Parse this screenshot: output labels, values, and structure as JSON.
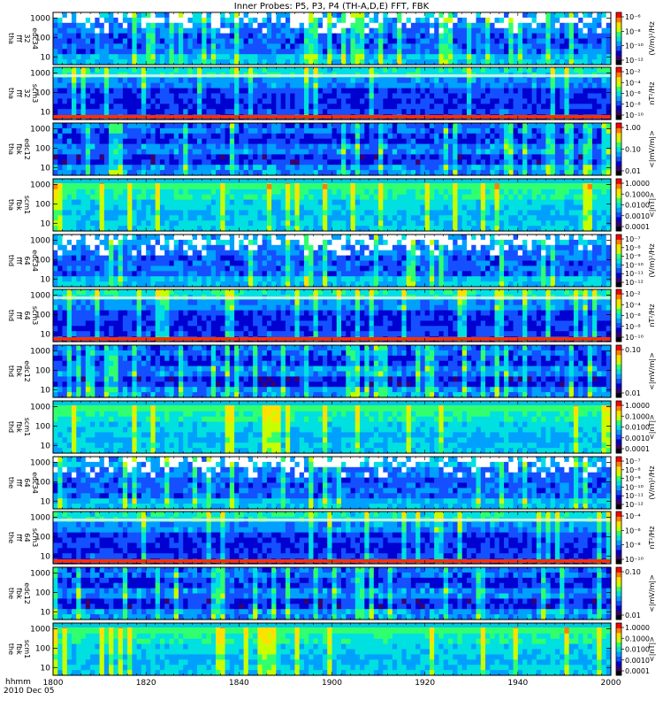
{
  "chart_data": {
    "type": "heatmap",
    "title": "Inner Probes: P5, P3, P4 (TH-A,D,E) FFT, FBK",
    "x": {
      "label": "hhmm",
      "date_label": "2010 Dec 05",
      "ticks": [
        "1800",
        "1820",
        "1840",
        "1900",
        "1920",
        "1940",
        "2000"
      ]
    },
    "panels": [
      {
        "probe": "tha",
        "instrument": "fff",
        "channel": "32",
        "quantity": "edc34",
        "yticks": [
          "10",
          "100",
          "1000"
        ],
        "cbar_unit": "(V/m)²/Hz",
        "cbar_ticks": [
          "10⁻⁶",
          "10⁻⁸",
          "10⁻¹⁰",
          "10⁻¹²"
        ]
      },
      {
        "probe": "tha",
        "instrument": "fff",
        "channel": "32",
        "quantity": "scm3",
        "yticks": [
          "10",
          "100",
          "1000"
        ],
        "cbar_unit": "nT²/Hz",
        "cbar_ticks": [
          "10⁻²",
          "10⁻⁴",
          "10⁻⁶",
          "10⁻⁸",
          "10⁻¹⁰"
        ]
      },
      {
        "probe": "tha",
        "instrument": "fbk",
        "channel": "",
        "quantity": "edc12",
        "yticks": [
          "10",
          "100",
          "1000"
        ],
        "cbar_unit": "<|mV/m|>",
        "cbar_ticks": [
          "1.00",
          "0.10",
          "0.01"
        ]
      },
      {
        "probe": "tha",
        "instrument": "fbk",
        "channel": "",
        "quantity": "scm1",
        "yticks": [
          "10",
          "100",
          "1000"
        ],
        "cbar_unit": "<|nT|>",
        "cbar_ticks": [
          "1.0000",
          "0.1000",
          "0.0100",
          "0.0010",
          "0.0001"
        ]
      },
      {
        "probe": "thd",
        "instrument": "fff",
        "channel": "64",
        "quantity": "edc34",
        "yticks": [
          "10",
          "100",
          "1000"
        ],
        "cbar_unit": "(V/m)²/Hz",
        "cbar_ticks": [
          "10⁻⁷",
          "10⁻⁸",
          "10⁻⁹",
          "10⁻¹⁰",
          "10⁻¹¹",
          "10⁻¹²"
        ]
      },
      {
        "probe": "thd",
        "instrument": "fff",
        "channel": "64",
        "quantity": "scm3",
        "yticks": [
          "10",
          "100",
          "1000"
        ],
        "cbar_unit": "nT²/Hz",
        "cbar_ticks": [
          "10⁻²",
          "10⁻⁴",
          "10⁻⁶",
          "10⁻⁸",
          "10⁻¹⁰"
        ]
      },
      {
        "probe": "thd",
        "instrument": "fbk",
        "channel": "",
        "quantity": "edc12",
        "yticks": [
          "10",
          "100",
          "1000"
        ],
        "cbar_unit": "<|mV/m|>",
        "cbar_ticks": [
          "0.10",
          "0.01"
        ]
      },
      {
        "probe": "thd",
        "instrument": "fbk",
        "channel": "",
        "quantity": "scm1",
        "yticks": [
          "10",
          "100",
          "1000"
        ],
        "cbar_unit": "<|nT|>",
        "cbar_ticks": [
          "1.0000",
          "0.1000",
          "0.0100",
          "0.0010",
          "0.0001"
        ]
      },
      {
        "probe": "the",
        "instrument": "fff",
        "channel": "64",
        "quantity": "edc34",
        "yticks": [
          "10",
          "100",
          "1000"
        ],
        "cbar_unit": "(V/m)²/Hz",
        "cbar_ticks": [
          "10⁻⁷",
          "10⁻⁸",
          "10⁻⁹",
          "10⁻¹⁰",
          "10⁻¹¹",
          "10⁻¹²"
        ]
      },
      {
        "probe": "the",
        "instrument": "fff",
        "channel": "64",
        "quantity": "scm3",
        "yticks": [
          "10",
          "100",
          "1000"
        ],
        "cbar_unit": "nT²/Hz",
        "cbar_ticks": [
          "10⁻⁴",
          "10⁻⁶",
          "10⁻⁸",
          "10⁻¹⁰"
        ]
      },
      {
        "probe": "the",
        "instrument": "fbk",
        "channel": "",
        "quantity": "edc12",
        "yticks": [
          "10",
          "100",
          "1000"
        ],
        "cbar_unit": "<|mV/m|>",
        "cbar_ticks": [
          "0.10",
          "0.01"
        ]
      },
      {
        "probe": "the",
        "instrument": "fbk",
        "channel": "",
        "quantity": "scm1",
        "yticks": [
          "10",
          "100",
          "1000"
        ],
        "cbar_unit": "<|nT|>",
        "cbar_ticks": [
          "1.0000",
          "0.1000",
          "0.0100",
          "0.0010",
          "0.0001"
        ]
      }
    ],
    "colorscale": [
      "#000000",
      "#3a006e",
      "#0000d0",
      "#1450ff",
      "#00a0ff",
      "#00e0e0",
      "#30ff70",
      "#c8ff00",
      "#ffe000",
      "#ff8000",
      "#ff0000"
    ],
    "y_scale": "log",
    "legend": "colorbar-right"
  }
}
